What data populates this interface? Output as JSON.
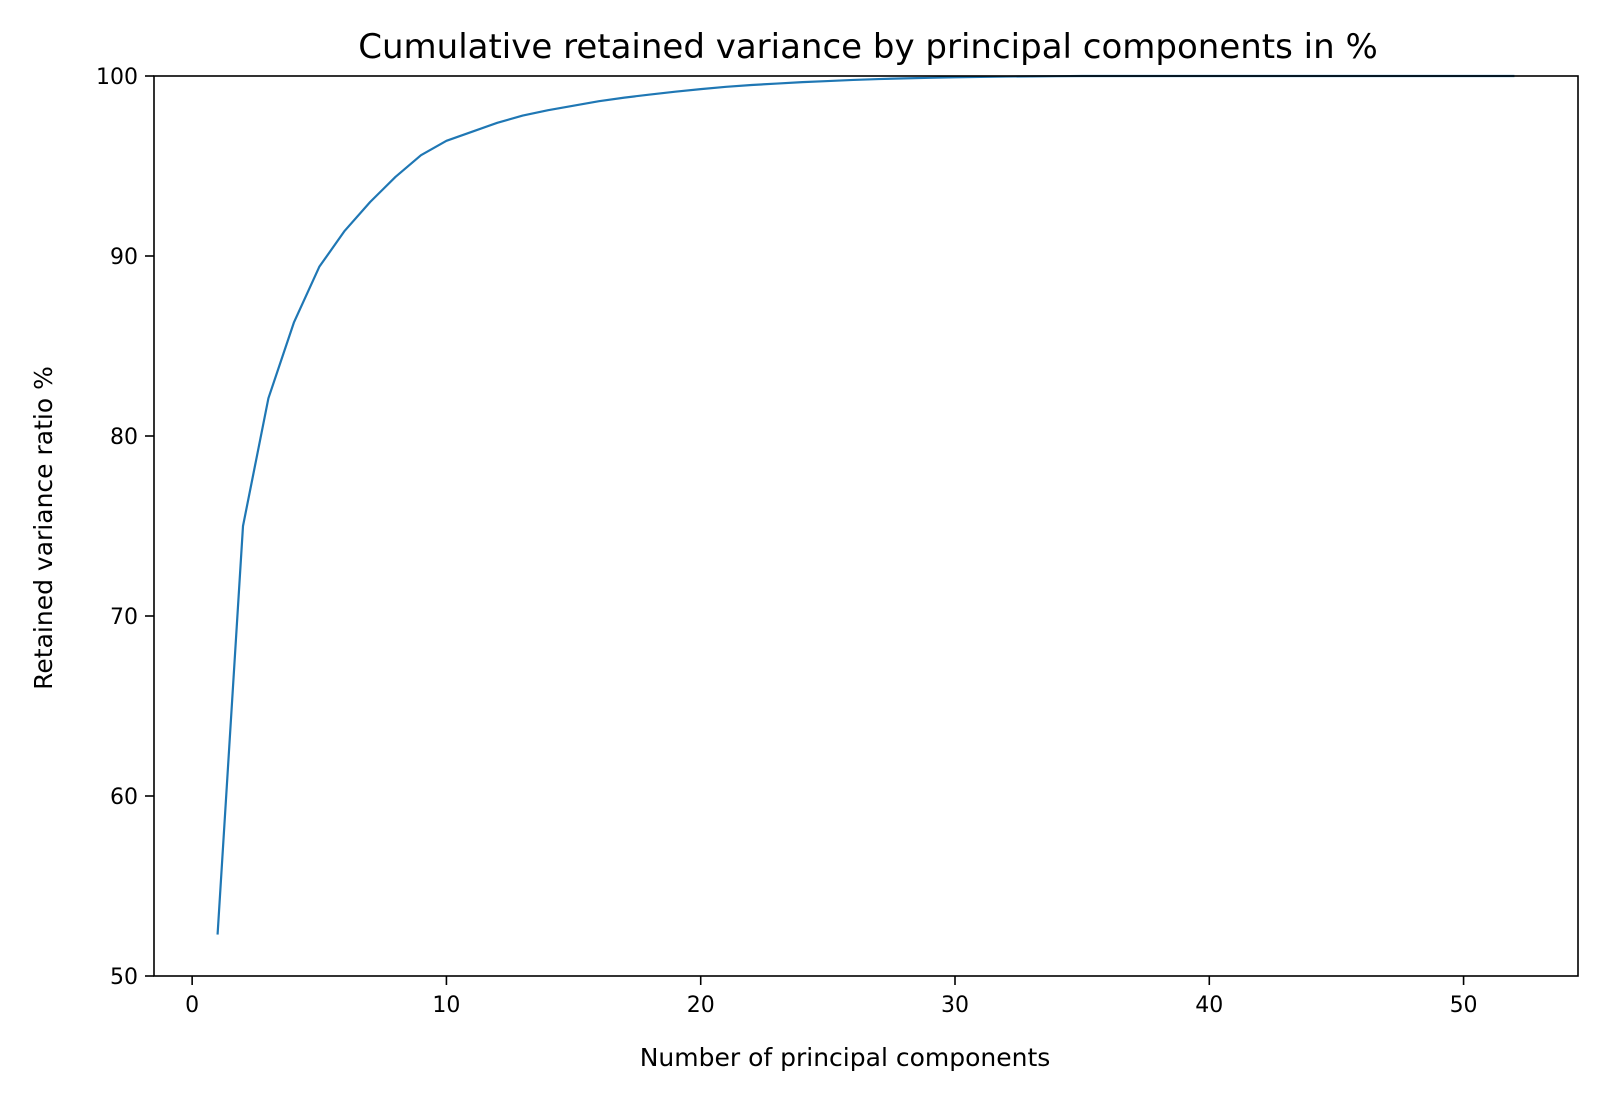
{
  "chart_data": {
    "type": "line",
    "title": "Cumulative retained variance by principal components in %",
    "xlabel": "Number of principal components",
    "ylabel": "Retained variance ratio %",
    "xlim": [
      -1.5,
      54.5
    ],
    "ylim": [
      50,
      100
    ],
    "xticks": [
      0,
      10,
      20,
      30,
      40,
      50
    ],
    "yticks": [
      50,
      60,
      70,
      80,
      90,
      100
    ],
    "grid": false,
    "line_color": "#1f77b4",
    "series": [
      {
        "x": [
          1,
          2,
          3,
          4,
          5,
          6,
          7,
          8,
          9,
          10,
          11,
          12,
          13,
          14,
          15,
          16,
          17,
          18,
          19,
          20,
          21,
          22,
          23,
          24,
          25,
          26,
          27,
          28,
          29,
          30,
          31,
          32,
          33,
          34,
          35,
          36,
          37,
          38,
          39,
          40,
          41,
          42,
          43,
          44,
          45,
          46,
          47,
          48,
          49,
          50,
          51,
          52
        ],
        "y": [
          52.3,
          75.0,
          82.1,
          86.3,
          89.4,
          91.4,
          93.0,
          94.4,
          95.6,
          96.4,
          96.9,
          97.4,
          97.8,
          98.1,
          98.35,
          98.6,
          98.8,
          98.97,
          99.13,
          99.27,
          99.4,
          99.5,
          99.58,
          99.66,
          99.72,
          99.78,
          99.83,
          99.87,
          99.9,
          99.93,
          99.95,
          99.97,
          99.98,
          99.99,
          100,
          100,
          100,
          100,
          100,
          100,
          100,
          100,
          100,
          100,
          100,
          100,
          100,
          100,
          100,
          100,
          100,
          100
        ]
      }
    ]
  }
}
